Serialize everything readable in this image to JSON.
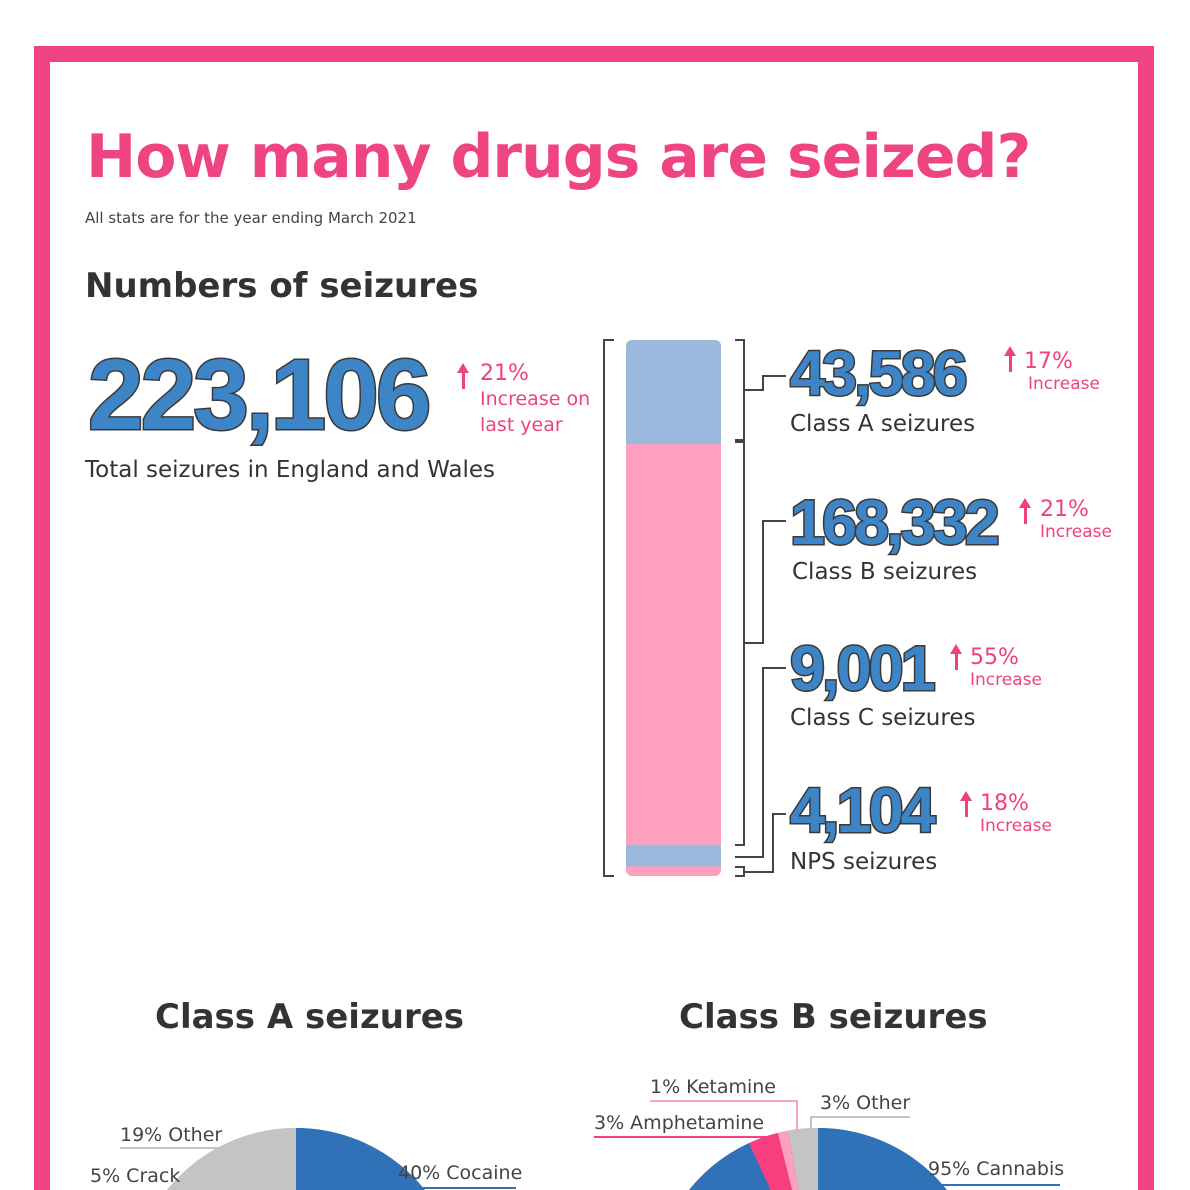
{
  "title": "How many drugs are seized?",
  "subtitle": "All stats are for the year ending March 2021",
  "section_title": "Numbers of seizures",
  "total": {
    "value": "223,106",
    "label": "Total seizures in England and Wales",
    "change_pct": "21%",
    "change_text_1": "Increase on",
    "change_text_2": "last year"
  },
  "classes": [
    {
      "value": "43,586",
      "label": "Class A seizures",
      "change_pct": "17%",
      "change_text": "Increase"
    },
    {
      "value": "168,332",
      "label": "Class B seizures",
      "change_pct": "21%",
      "change_text": "Increase"
    },
    {
      "value": "9,001",
      "label": "Class C seizures",
      "change_pct": "55%",
      "change_text": "Increase"
    },
    {
      "value": "4,104",
      "label": "NPS seizures",
      "change_pct": "18%",
      "change_text": "Increase"
    }
  ],
  "colors": {
    "accent": "#ee4482",
    "blue": "#3d85c6",
    "light_blue": "#98b8dc",
    "light_pink": "#fda0c0",
    "grey": "#c4c4c4",
    "hot_pink": "#f0407f"
  },
  "chart_data": [
    {
      "type": "bar",
      "stacked": true,
      "categories": [
        "Class A",
        "Class B",
        "Class C",
        "NPS"
      ],
      "values": [
        43586,
        168332,
        9001,
        4104
      ],
      "colors": [
        "#98b8dc",
        "#fda0c0",
        "#98b8dc",
        "#fda0c0"
      ]
    },
    {
      "type": "pie",
      "title": "Class A seizures",
      "slices": [
        {
          "label": "40% Cocaine",
          "value": 40,
          "color": "#2f72b8"
        },
        {
          "label": "19% Other",
          "value": 19,
          "color": "#c4c4c4"
        },
        {
          "label": "5% Crack",
          "value": 5,
          "color": "#f0407f"
        }
      ]
    },
    {
      "type": "pie",
      "title": "Class B seizures",
      "slices": [
        {
          "label": "95% Cannabis",
          "value": 95,
          "color": "#2f72b8"
        },
        {
          "label": "3% Amphetamine",
          "value": 3,
          "color": "#f73f80"
        },
        {
          "label": "1% Ketamine",
          "value": 1,
          "color": "#fda0c0"
        },
        {
          "label": "3% Other",
          "value": 3,
          "color": "#c4c4c4"
        }
      ]
    }
  ]
}
